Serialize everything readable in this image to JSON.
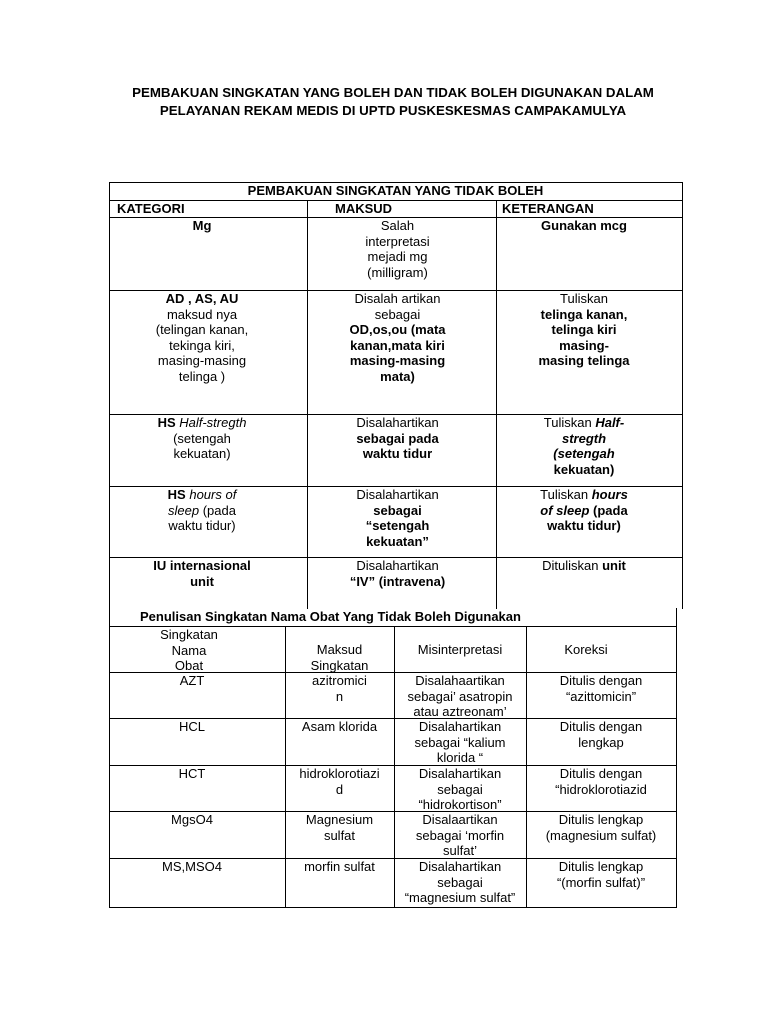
{
  "document": {
    "title_lines": [
      "PEMBAKUAN SINGKATAN YANG BOLEH DAN TIDAK BOLEH DIGUNAKAN DALAM",
      "PELAYANAN REKAM MEDIS DI UPTD PUSKESKESMAS CAMPAKAMULYA"
    ]
  },
  "table1": {
    "title": "PEMBAKUAN SINGKATAN YANG TIDAK BOLEH",
    "headers": [
      "KATEGORI",
      "MAKSUD",
      "KETERANGAN"
    ],
    "rows": [
      [
        [
          {
            "text": "Mg",
            "b": true
          }
        ],
        [
          {
            "text": "Salah\ninterpretasi\nmejadi mg\n(milligram)"
          }
        ],
        [
          {
            "text": "Gunakan mcg",
            "b": true
          }
        ]
      ],
      [
        [
          {
            "text": "AD , AS, AU",
            "b": true
          },
          {
            "text": "\nmaksud nya\n(telingan kanan,\ntekinga kiri,\nmasing-masing\ntelinga )"
          }
        ],
        [
          {
            "text": "Disalah artikan\nsebagai\n"
          },
          {
            "text": "OD,os,ou (mata\nkanan,mata kiri\nmasing-masing\nmata)",
            "b": true
          }
        ],
        [
          {
            "text": "Tuliskan\n"
          },
          {
            "text": "telinga kanan,\ntelinga kiri\nmasing-\nmasing telinga",
            "b": true
          }
        ]
      ],
      [
        [
          {
            "text": "HS ",
            "b": true
          },
          {
            "text": "Half-stregth",
            "i": true
          },
          {
            "text": "\n(setengah\nkekuatan)"
          }
        ],
        [
          {
            "text": "Disalahartikan\n"
          },
          {
            "text": "sebagai pada\nwaktu tidur",
            "b": true
          }
        ],
        [
          {
            "text": "Tuliskan "
          },
          {
            "text": "Half-\nstregth\n(setengah",
            "b": true,
            "i": true
          },
          {
            "text": "\nkekuatan)",
            "b": true
          }
        ]
      ],
      [
        [
          {
            "text": "HS ",
            "b": true
          },
          {
            "text": "hours of\nsleep",
            "i": true
          },
          {
            "text": " (pada\nwaktu tidur)"
          }
        ],
        [
          {
            "text": "Disalahartikan\n"
          },
          {
            "text": "sebagai\n“setengah\nkekuatan”",
            "b": true
          }
        ],
        [
          {
            "text": "Tuliskan "
          },
          {
            "text": "hours\nof sleep",
            "b": true,
            "i": true
          },
          {
            "text": " (pada\nwaktu tidur)",
            "b": true
          }
        ]
      ],
      [
        [
          {
            "text": "IU internasional\nunit",
            "b": true
          }
        ],
        [
          {
            "text": "Disalahartikan\n"
          },
          {
            "text": "“IV” (intravena)",
            "b": true
          }
        ],
        [
          {
            "text": "Dituliskan "
          },
          {
            "text": "unit",
            "b": true
          }
        ]
      ]
    ]
  },
  "table2": {
    "title": "Penulisan Singkatan Nama Obat Yang Tidak Boleh Digunakan",
    "headers": [
      "Singkatan\nNama\nObat",
      "Maksud\nSingkatan",
      "Misinterpretasi",
      "Koreksi"
    ],
    "rows": [
      [
        "AZT",
        "azitromici\nn",
        "Disalahaartikan\nsebagai’ asatropin\natau aztreonam’",
        "Ditulis dengan\n“azittomicin”"
      ],
      [
        "HCL",
        "Asam klorida",
        "Disalahartikan\nsebagai “kalium\nklorida “",
        "Ditulis dengan\nlengkap"
      ],
      [
        "HCT",
        "hidroklorotiazi\nd",
        "Disalahartikan\nsebagai\n“hidrokortison”",
        "Ditulis dengan\n“hidroklorotiazid"
      ],
      [
        "MgsO4",
        "Magnesium\nsulfat",
        "Disalaartikan\nsebagai ‘morfin\nsulfat’",
        "Ditulis lengkap\n(magnesium sulfat)"
      ],
      [
        "MS,MSO4",
        "morfin sulfat",
        "Disalahartikan\nsebagai\n“magnesium sulfat”",
        "Ditulis lengkap\n“(morfin sulfat)”"
      ]
    ]
  }
}
